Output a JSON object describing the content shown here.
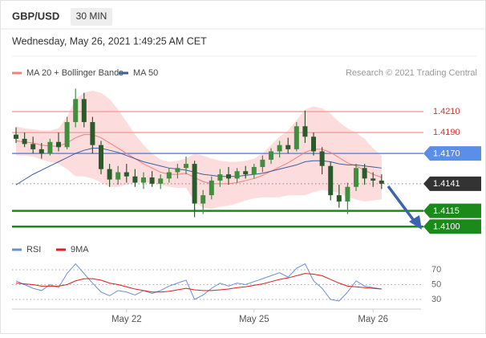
{
  "chart_data": {
    "type": "candlestick",
    "title": "GBP/USD",
    "timeframe": "30 MIN",
    "subtitle": "Wednesday, May 26, 2021 1:49:25 AM CET",
    "credit": "Research © 2021 Trading Central",
    "categories": [
      null,
      null,
      null,
      null,
      null,
      null,
      null,
      null,
      null,
      null,
      null,
      null,
      null,
      "May 22",
      null,
      null,
      null,
      null,
      null,
      null,
      null,
      null,
      null,
      null,
      null,
      null,
      null,
      null,
      "May 25",
      null,
      null,
      null,
      null,
      null,
      null,
      null,
      null,
      null,
      null,
      null,
      null,
      null,
      "May 26",
      null
    ],
    "ylim": [
      1.4094,
      1.424
    ],
    "up_color": "#3f8f3f",
    "down_color": "#2b5a2b",
    "ohlc": [
      [
        1.4188,
        1.4195,
        1.418,
        1.4184
      ],
      [
        1.4184,
        1.419,
        1.4176,
        1.4179
      ],
      [
        1.4179,
        1.4186,
        1.417,
        1.4174
      ],
      [
        1.4174,
        1.418,
        1.4165,
        1.417
      ],
      [
        1.417,
        1.4184,
        1.4168,
        1.4181
      ],
      [
        1.4181,
        1.419,
        1.4172,
        1.4176
      ],
      [
        1.4176,
        1.4205,
        1.4174,
        1.42
      ],
      [
        1.42,
        1.4232,
        1.4195,
        1.4222
      ],
      [
        1.4222,
        1.4228,
        1.4195,
        1.42
      ],
      [
        1.42,
        1.4205,
        1.417,
        1.4178
      ],
      [
        1.4178,
        1.4182,
        1.415,
        1.4155
      ],
      [
        1.4155,
        1.416,
        1.4138,
        1.4145
      ],
      [
        1.4145,
        1.4158,
        1.414,
        1.4152
      ],
      [
        1.4152,
        1.416,
        1.4142,
        1.4148
      ],
      [
        1.4148,
        1.4155,
        1.4138,
        1.4142
      ],
      [
        1.4142,
        1.4152,
        1.4136,
        1.4147
      ],
      [
        1.4147,
        1.4153,
        1.4138,
        1.4141
      ],
      [
        1.4141,
        1.415,
        1.4136,
        1.4146
      ],
      [
        1.4146,
        1.4156,
        1.4142,
        1.4152
      ],
      [
        1.4152,
        1.416,
        1.4146,
        1.4156
      ],
      [
        1.4156,
        1.4167,
        1.415,
        1.416
      ],
      [
        1.416,
        1.4163,
        1.4109,
        1.4122
      ],
      [
        1.4122,
        1.4135,
        1.4112,
        1.413
      ],
      [
        1.413,
        1.4148,
        1.4126,
        1.4144
      ],
      [
        1.4144,
        1.4155,
        1.4138,
        1.415
      ],
      [
        1.415,
        1.4157,
        1.414,
        1.4146
      ],
      [
        1.4146,
        1.4156,
        1.4142,
        1.4153
      ],
      [
        1.4153,
        1.4158,
        1.4146,
        1.415
      ],
      [
        1.415,
        1.416,
        1.4146,
        1.4157
      ],
      [
        1.4157,
        1.4168,
        1.4152,
        1.4164
      ],
      [
        1.4164,
        1.4175,
        1.416,
        1.4172
      ],
      [
        1.4172,
        1.4182,
        1.4166,
        1.4178
      ],
      [
        1.4178,
        1.4185,
        1.417,
        1.4174
      ],
      [
        1.4174,
        1.42,
        1.4172,
        1.4196
      ],
      [
        1.4196,
        1.4211,
        1.418,
        1.4186
      ],
      [
        1.4186,
        1.419,
        1.4168,
        1.4172
      ],
      [
        1.4172,
        1.4176,
        1.415,
        1.4158
      ],
      [
        1.4158,
        1.4162,
        1.4125,
        1.413
      ],
      [
        1.413,
        1.414,
        1.4118,
        1.4124
      ],
      [
        1.4124,
        1.4142,
        1.4112,
        1.4138
      ],
      [
        1.4138,
        1.416,
        1.4134,
        1.4156
      ],
      [
        1.4156,
        1.416,
        1.414,
        1.4146
      ],
      [
        1.4146,
        1.4152,
        1.4138,
        1.4144
      ],
      [
        1.4144,
        1.415,
        1.4136,
        1.4141
      ]
    ],
    "ma20": {
      "name": "MA 20 + Bollinger Bands",
      "color": "#f08080",
      "band_color": "#fbd3d3",
      "values": [
        1.4182,
        1.4181,
        1.418,
        1.4178,
        1.4177,
        1.4177,
        1.418,
        1.4185,
        1.4188,
        1.4188,
        1.4185,
        1.418,
        1.4175,
        1.417,
        1.4165,
        1.416,
        1.4156,
        1.4152,
        1.415,
        1.415,
        1.4151,
        1.4147,
        1.4143,
        1.4141,
        1.4141,
        1.4141,
        1.4142,
        1.4144,
        1.4146,
        1.4149,
        1.4153,
        1.4157,
        1.4161,
        1.4166,
        1.4171,
        1.4174,
        1.4174,
        1.4171,
        1.4166,
        1.4161,
        1.4158,
        1.4154,
        1.415,
        1.4147
      ],
      "upper": [
        1.4196,
        1.4194,
        1.4193,
        1.4192,
        1.4192,
        1.4194,
        1.4205,
        1.4222,
        1.4228,
        1.423,
        1.4228,
        1.4222,
        1.4212,
        1.42,
        1.4188,
        1.4178,
        1.417,
        1.4164,
        1.4162,
        1.4163,
        1.4165,
        1.417,
        1.4168,
        1.4165,
        1.4163,
        1.4162,
        1.4162,
        1.4163,
        1.4165,
        1.417,
        1.4178,
        1.4186,
        1.4192,
        1.4202,
        1.4212,
        1.4215,
        1.4213,
        1.4208,
        1.42,
        1.4194,
        1.419,
        1.4184,
        1.4175,
        1.4168
      ],
      "lower": [
        1.4168,
        1.4168,
        1.4167,
        1.4164,
        1.4162,
        1.416,
        1.4155,
        1.4148,
        1.4148,
        1.4146,
        1.4142,
        1.4138,
        1.4138,
        1.414,
        1.4142,
        1.4142,
        1.4142,
        1.414,
        1.4138,
        1.4137,
        1.4137,
        1.4124,
        1.4118,
        1.4117,
        1.4119,
        1.412,
        1.4122,
        1.4125,
        1.4127,
        1.4128,
        1.4128,
        1.4128,
        1.413,
        1.413,
        1.413,
        1.4133,
        1.4135,
        1.4134,
        1.4132,
        1.4128,
        1.4126,
        1.4124,
        1.4125,
        1.4126
      ]
    },
    "ma50": {
      "name": "MA 50",
      "color": "#3b5fa0",
      "values": [
        1.414,
        1.4145,
        1.415,
        1.4154,
        1.4158,
        1.4162,
        1.4166,
        1.417,
        1.4173,
        1.4175,
        1.4175,
        1.4173,
        1.4171,
        1.4168,
        1.4165,
        1.4162,
        1.416,
        1.4158,
        1.4156,
        1.4155,
        1.4154,
        1.4152,
        1.415,
        1.4149,
        1.4148,
        1.4148,
        1.4148,
        1.4149,
        1.415,
        1.4151,
        1.4153,
        1.4155,
        1.4157,
        1.4159,
        1.4162,
        1.4163,
        1.4163,
        1.4162,
        1.416,
        1.4159,
        1.4159,
        1.4158,
        1.4157,
        1.4156
      ]
    },
    "levels": [
      {
        "value": 1.421,
        "label": "1.4210",
        "color": "#f4a3a3",
        "tag": false,
        "dashed": false,
        "width": 1.5
      },
      {
        "value": 1.419,
        "label": "1.4190",
        "color": "#f4a3a3",
        "tag": false,
        "dashed": false,
        "width": 1.5
      },
      {
        "value": 1.417,
        "label": "1.4170",
        "color": "#5b8ee6",
        "tag": true,
        "dashed": false,
        "width": 1.5
      },
      {
        "value": 1.4141,
        "label": "1.4141",
        "color": "#333333",
        "tag": true,
        "dashed": true,
        "width": 1
      },
      {
        "value": 1.4115,
        "label": "1.4115",
        "color": "#1a8a1a",
        "tag": true,
        "dashed": false,
        "width": 2.5
      },
      {
        "value": 1.41,
        "label": "1.4100",
        "color": "#1a8a1a",
        "tag": true,
        "dashed": false,
        "width": 2.5
      }
    ],
    "rsi": {
      "ylim": [
        20,
        90
      ],
      "yticks": [
        30,
        50,
        70
      ],
      "series": [
        {
          "name": "RSI",
          "color": "#6a8fd8",
          "values": [
            55,
            50,
            45,
            42,
            50,
            46,
            65,
            78,
            65,
            52,
            40,
            35,
            42,
            40,
            36,
            42,
            38,
            42,
            48,
            52,
            56,
            30,
            36,
            45,
            52,
            48,
            52,
            50,
            54,
            58,
            62,
            66,
            60,
            72,
            78,
            55,
            45,
            30,
            28,
            40,
            55,
            48,
            46,
            44
          ]
        },
        {
          "name": "9MA",
          "color": "#e31b1b",
          "values": [
            52,
            51,
            50,
            48,
            48,
            48,
            50,
            55,
            58,
            58,
            56,
            52,
            50,
            47,
            44,
            42,
            40,
            40,
            41,
            43,
            45,
            43,
            42,
            42,
            43,
            44,
            46,
            47,
            49,
            51,
            54,
            57,
            59,
            62,
            65,
            64,
            62,
            57,
            52,
            48,
            47,
            46,
            45,
            44
          ]
        }
      ]
    }
  }
}
